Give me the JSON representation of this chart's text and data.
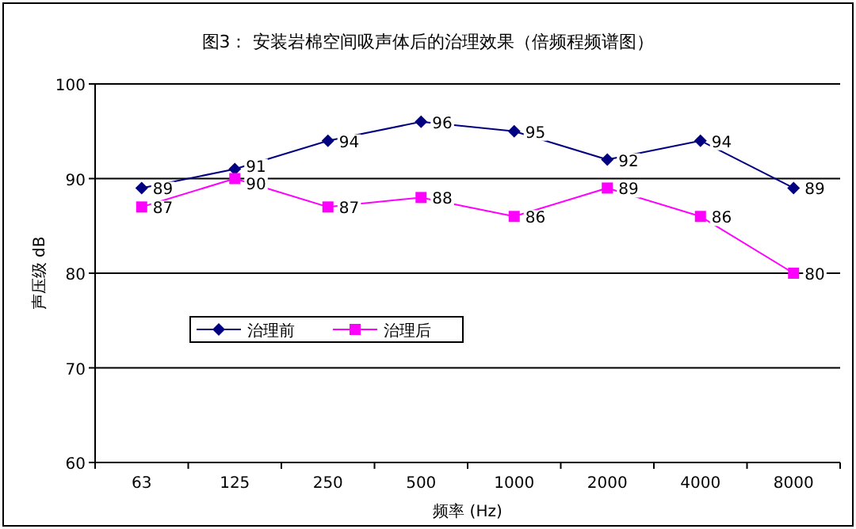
{
  "chart_data": {
    "type": "line",
    "title": "图3：  安装岩棉空间吸声体后的治理效果（倍频程频谱图）",
    "xlabel": "频率 (Hz)",
    "ylabel": "声压级 dB",
    "categories": [
      "63",
      "125",
      "250",
      "500",
      "1000",
      "2000",
      "4000",
      "8000"
    ],
    "series": [
      {
        "name": "治理前",
        "color": "#000080",
        "marker": "diamond",
        "values": [
          89,
          91,
          94,
          96,
          95,
          92,
          94,
          89
        ]
      },
      {
        "name": "治理后",
        "color": "#ff00ff",
        "marker": "square",
        "values": [
          87,
          90,
          87,
          88,
          86,
          89,
          86,
          80
        ]
      }
    ],
    "ylim": [
      60,
      100
    ],
    "yticks": [
      60,
      70,
      80,
      90,
      100
    ],
    "grid": "y",
    "legend": "left",
    "data_labels": true,
    "line_style": "solid"
  }
}
